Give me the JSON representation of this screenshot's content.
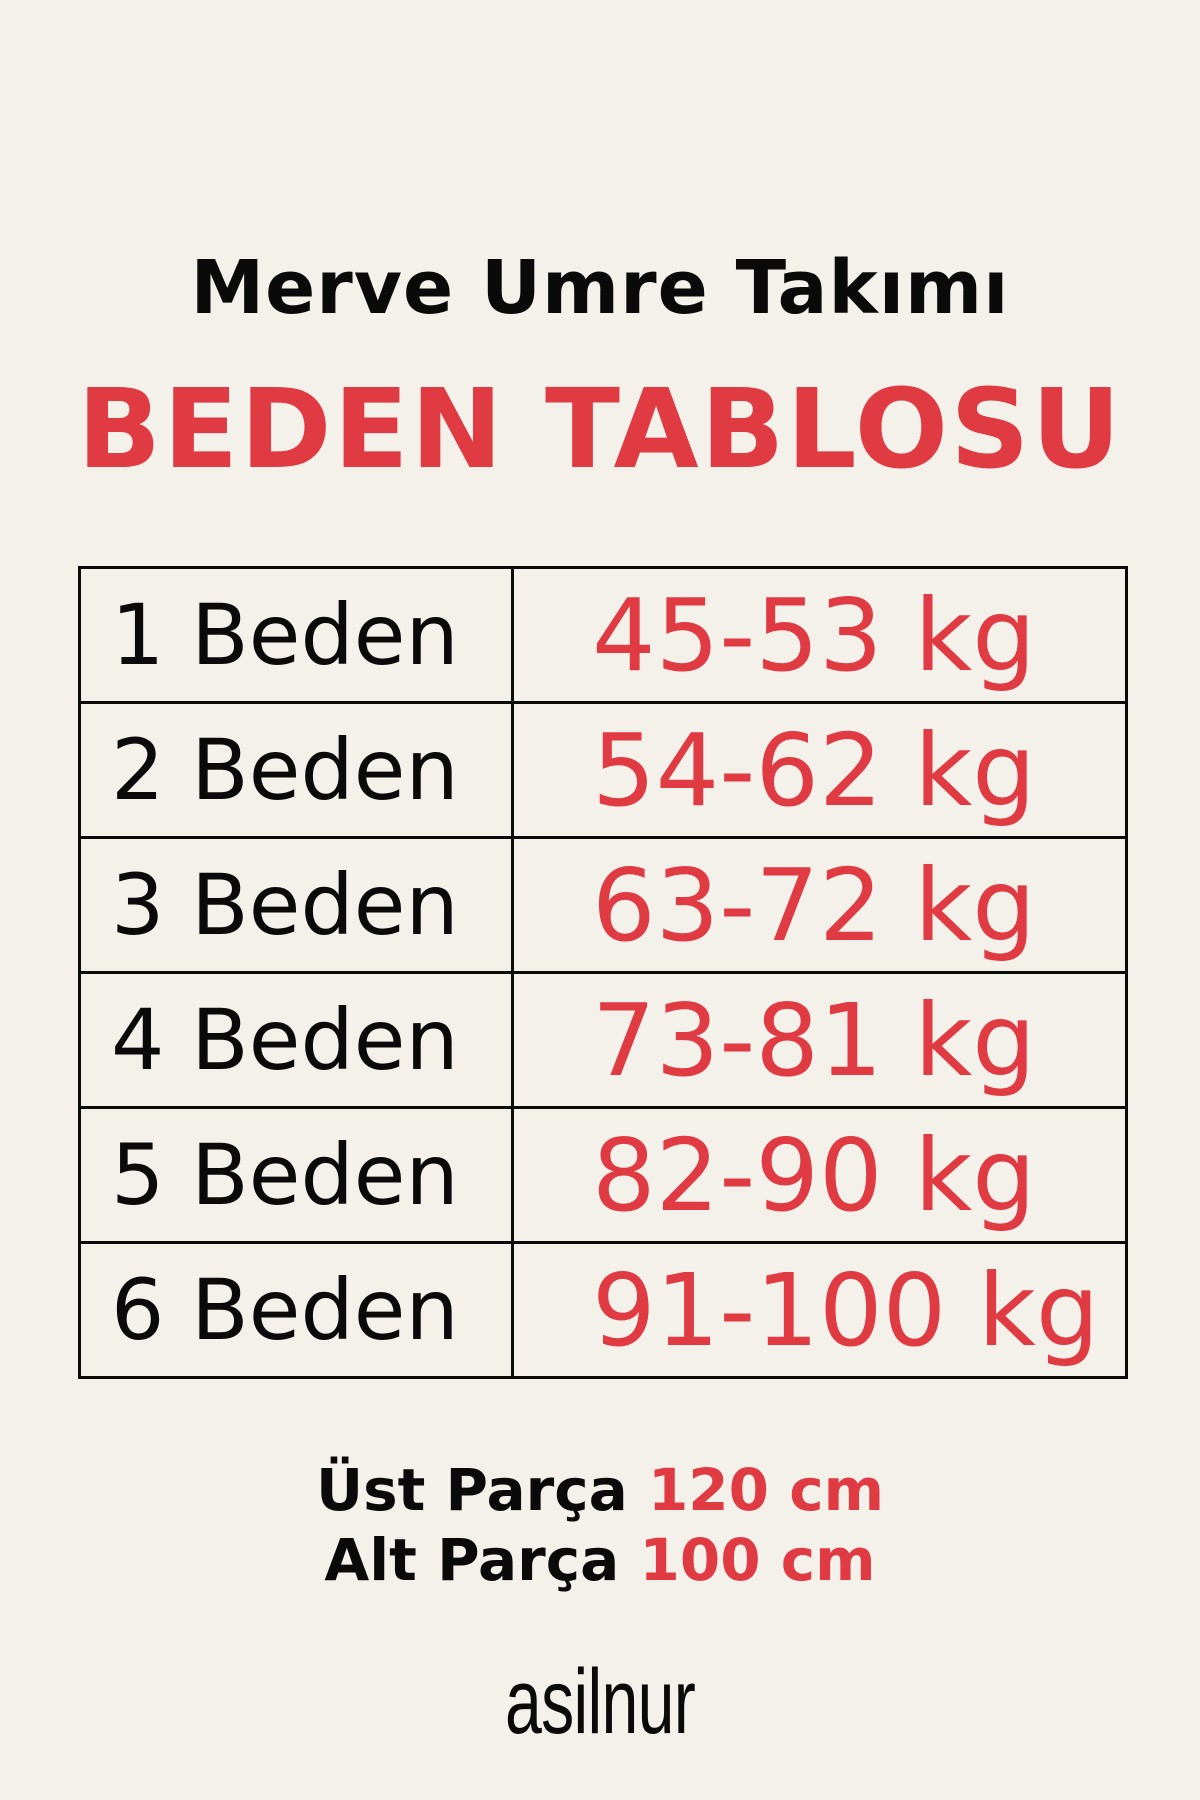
{
  "header": {
    "subtitle": "Merve Umre Takımı",
    "title": "BEDEN TABLOSU"
  },
  "size_table": {
    "rows": [
      {
        "size": "1 Beden",
        "weight": "45-53 kg"
      },
      {
        "size": "2 Beden",
        "weight": "54-62 kg"
      },
      {
        "size": "3 Beden",
        "weight": "63-72 kg"
      },
      {
        "size": "4 Beden",
        "weight": "73-81 kg"
      },
      {
        "size": "5 Beden",
        "weight": "82-90 kg"
      },
      {
        "size": "6 Beden",
        "weight": "91-100 kg"
      }
    ]
  },
  "measurements": {
    "top_label": "Üst Parça",
    "top_value": "120 cm",
    "bottom_label": "Alt Parça",
    "bottom_value": "100 cm"
  },
  "brand": {
    "logo": "asilnur"
  },
  "colors": {
    "accent": "#e03a42",
    "background": "#f4f1eb",
    "text": "#0a0a0a"
  }
}
